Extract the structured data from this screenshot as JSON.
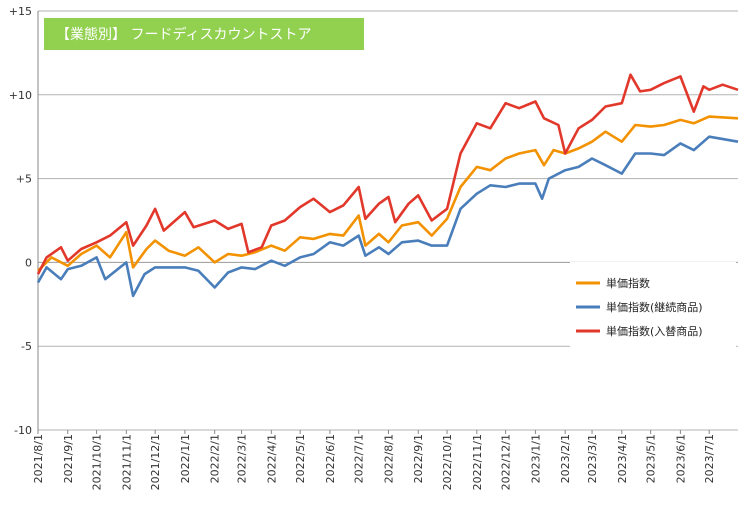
{
  "chart_data": {
    "type": "line",
    "title": "【業態別】 フードディスカウントストア",
    "title_bg_color": "#92D050",
    "ylim": [
      -10,
      15
    ],
    "yticks": [
      {
        "value": 15,
        "label": "+15"
      },
      {
        "value": 10,
        "label": "+10"
      },
      {
        "value": 5,
        "label": "+5"
      },
      {
        "value": 0,
        "label": "0"
      },
      {
        "value": -5,
        "label": "-5"
      },
      {
        "value": -10,
        "label": "-10"
      }
    ],
    "x_tick_labels": [
      "2021/8/1",
      "2021/9/1",
      "2021/10/1",
      "2021/11/1",
      "2021/12/1",
      "2022/1/1",
      "2022/2/1",
      "2022/3/1",
      "2022/4/1",
      "2022/5/1",
      "2022/6/1",
      "2022/7/1",
      "2022/8/1",
      "2022/9/1",
      "2022/10/1",
      "2022/11/1",
      "2022/12/1",
      "2023/1/1",
      "2023/2/1",
      "2023/3/1",
      "2023/4/1",
      "2023/5/1",
      "2023/6/1",
      "2023/7/1"
    ],
    "x_start": "2021/8/1",
    "x_end": "2023/7/31",
    "grid": "horizontal",
    "legend_position": "right",
    "series": [
      {
        "name": "単価指数",
        "color": "#F39200",
        "points": [
          [
            "2021/8/1",
            -0.5
          ],
          [
            "2021/8/15",
            0.3
          ],
          [
            "2021/9/1",
            -0.2
          ],
          [
            "2021/9/15",
            0.5
          ],
          [
            "2021/10/1",
            1.0
          ],
          [
            "2021/10/15",
            0.3
          ],
          [
            "2021/11/1",
            1.8
          ],
          [
            "2021/11/8",
            -0.3
          ],
          [
            "2021/11/22",
            0.8
          ],
          [
            "2021/12/1",
            1.3
          ],
          [
            "2021/12/15",
            0.7
          ],
          [
            "2022/1/1",
            0.4
          ],
          [
            "2022/1/15",
            0.9
          ],
          [
            "2022/2/1",
            0.0
          ],
          [
            "2022/2/15",
            0.5
          ],
          [
            "2022/3/1",
            0.4
          ],
          [
            "2022/3/15",
            0.6
          ],
          [
            "2022/4/1",
            1.0
          ],
          [
            "2022/4/15",
            0.7
          ],
          [
            "2022/5/1",
            1.5
          ],
          [
            "2022/5/15",
            1.4
          ],
          [
            "2022/6/1",
            1.7
          ],
          [
            "2022/6/15",
            1.6
          ],
          [
            "2022/7/1",
            2.8
          ],
          [
            "2022/7/8",
            1.0
          ],
          [
            "2022/7/22",
            1.7
          ],
          [
            "2022/8/1",
            1.2
          ],
          [
            "2022/8/15",
            2.2
          ],
          [
            "2022/9/1",
            2.4
          ],
          [
            "2022/9/15",
            1.6
          ],
          [
            "2022/10/1",
            2.6
          ],
          [
            "2022/10/15",
            4.5
          ],
          [
            "2022/11/1",
            5.7
          ],
          [
            "2022/11/15",
            5.5
          ],
          [
            "2022/12/1",
            6.2
          ],
          [
            "2022/12/15",
            6.5
          ],
          [
            "2023/1/1",
            6.7
          ],
          [
            "2023/1/10",
            5.8
          ],
          [
            "2023/1/20",
            6.7
          ],
          [
            "2023/2/1",
            6.5
          ],
          [
            "2023/2/15",
            6.8
          ],
          [
            "2023/3/1",
            7.2
          ],
          [
            "2023/3/15",
            7.8
          ],
          [
            "2023/4/1",
            7.2
          ],
          [
            "2023/4/15",
            8.2
          ],
          [
            "2023/5/1",
            8.1
          ],
          [
            "2023/5/15",
            8.2
          ],
          [
            "2023/6/1",
            8.5
          ],
          [
            "2023/6/15",
            8.3
          ],
          [
            "2023/7/1",
            8.7
          ],
          [
            "2023/7/31",
            8.6
          ]
        ]
      },
      {
        "name": "単価指数(継続商品)",
        "color": "#4A7EBB",
        "points": [
          [
            "2021/8/1",
            -1.2
          ],
          [
            "2021/8/10",
            -0.3
          ],
          [
            "2021/8/25",
            -1.0
          ],
          [
            "2021/9/1",
            -0.4
          ],
          [
            "2021/9/15",
            -0.2
          ],
          [
            "2021/10/1",
            0.3
          ],
          [
            "2021/10/10",
            -1.0
          ],
          [
            "2021/11/1",
            0.0
          ],
          [
            "2021/11/8",
            -2.0
          ],
          [
            "2021/11/20",
            -0.7
          ],
          [
            "2021/12/1",
            -0.3
          ],
          [
            "2021/12/15",
            -0.3
          ],
          [
            "2022/1/1",
            -0.3
          ],
          [
            "2022/1/15",
            -0.5
          ],
          [
            "2022/2/1",
            -1.5
          ],
          [
            "2022/2/15",
            -0.6
          ],
          [
            "2022/3/1",
            -0.3
          ],
          [
            "2022/3/15",
            -0.4
          ],
          [
            "2022/4/1",
            0.1
          ],
          [
            "2022/4/15",
            -0.2
          ],
          [
            "2022/5/1",
            0.3
          ],
          [
            "2022/5/15",
            0.5
          ],
          [
            "2022/6/1",
            1.2
          ],
          [
            "2022/6/15",
            1.0
          ],
          [
            "2022/7/1",
            1.6
          ],
          [
            "2022/7/8",
            0.4
          ],
          [
            "2022/7/22",
            0.9
          ],
          [
            "2022/8/1",
            0.5
          ],
          [
            "2022/8/15",
            1.2
          ],
          [
            "2022/9/1",
            1.3
          ],
          [
            "2022/9/15",
            1.0
          ],
          [
            "2022/10/1",
            1.0
          ],
          [
            "2022/10/15",
            3.2
          ],
          [
            "2022/11/1",
            4.1
          ],
          [
            "2022/11/15",
            4.6
          ],
          [
            "2022/12/1",
            4.5
          ],
          [
            "2022/12/15",
            4.7
          ],
          [
            "2023/1/1",
            4.7
          ],
          [
            "2023/1/8",
            3.8
          ],
          [
            "2023/1/15",
            5.0
          ],
          [
            "2023/2/1",
            5.5
          ],
          [
            "2023/2/15",
            5.7
          ],
          [
            "2023/3/1",
            6.2
          ],
          [
            "2023/3/15",
            5.8
          ],
          [
            "2023/4/1",
            5.3
          ],
          [
            "2023/4/15",
            6.5
          ],
          [
            "2023/5/1",
            6.5
          ],
          [
            "2023/5/15",
            6.4
          ],
          [
            "2023/6/1",
            7.1
          ],
          [
            "2023/6/15",
            6.7
          ],
          [
            "2023/7/1",
            7.5
          ],
          [
            "2023/7/31",
            7.2
          ]
        ]
      },
      {
        "name": "単価指数(入替商品)",
        "color": "#E2382B",
        "points": [
          [
            "2021/8/1",
            -0.7
          ],
          [
            "2021/8/10",
            0.3
          ],
          [
            "2021/8/25",
            0.9
          ],
          [
            "2021/9/1",
            0.1
          ],
          [
            "2021/9/15",
            0.8
          ],
          [
            "2021/10/1",
            1.2
          ],
          [
            "2021/10/15",
            1.6
          ],
          [
            "2021/11/1",
            2.4
          ],
          [
            "2021/11/8",
            1.0
          ],
          [
            "2021/11/22",
            2.2
          ],
          [
            "2021/12/1",
            3.2
          ],
          [
            "2021/12/10",
            1.9
          ],
          [
            "2022/1/1",
            3.0
          ],
          [
            "2022/1/10",
            2.1
          ],
          [
            "2022/2/1",
            2.5
          ],
          [
            "2022/2/15",
            2.0
          ],
          [
            "2022/3/1",
            2.3
          ],
          [
            "2022/3/8",
            0.6
          ],
          [
            "2022/3/22",
            0.9
          ],
          [
            "2022/4/1",
            2.2
          ],
          [
            "2022/4/15",
            2.5
          ],
          [
            "2022/5/1",
            3.3
          ],
          [
            "2022/5/15",
            3.8
          ],
          [
            "2022/6/1",
            3.0
          ],
          [
            "2022/6/15",
            3.4
          ],
          [
            "2022/7/1",
            4.5
          ],
          [
            "2022/7/8",
            2.6
          ],
          [
            "2022/7/22",
            3.5
          ],
          [
            "2022/8/1",
            3.9
          ],
          [
            "2022/8/8",
            2.4
          ],
          [
            "2022/8/22",
            3.5
          ],
          [
            "2022/9/1",
            4.0
          ],
          [
            "2022/9/15",
            2.5
          ],
          [
            "2022/10/1",
            3.2
          ],
          [
            "2022/10/15",
            6.5
          ],
          [
            "2022/11/1",
            8.3
          ],
          [
            "2022/11/15",
            8.0
          ],
          [
            "2022/12/1",
            9.5
          ],
          [
            "2022/12/15",
            9.2
          ],
          [
            "2023/1/1",
            9.6
          ],
          [
            "2023/1/10",
            8.6
          ],
          [
            "2023/1/25",
            8.2
          ],
          [
            "2023/2/1",
            6.5
          ],
          [
            "2023/2/15",
            8.0
          ],
          [
            "2023/3/1",
            8.5
          ],
          [
            "2023/3/15",
            9.3
          ],
          [
            "2023/4/1",
            9.5
          ],
          [
            "2023/4/10",
            11.2
          ],
          [
            "2023/4/20",
            10.2
          ],
          [
            "2023/5/1",
            10.3
          ],
          [
            "2023/5/15",
            10.7
          ],
          [
            "2023/6/1",
            11.1
          ],
          [
            "2023/6/15",
            9.0
          ],
          [
            "2023/6/25",
            10.5
          ],
          [
            "2023/7/1",
            10.3
          ],
          [
            "2023/7/15",
            10.6
          ],
          [
            "2023/7/31",
            10.3
          ]
        ]
      }
    ]
  }
}
